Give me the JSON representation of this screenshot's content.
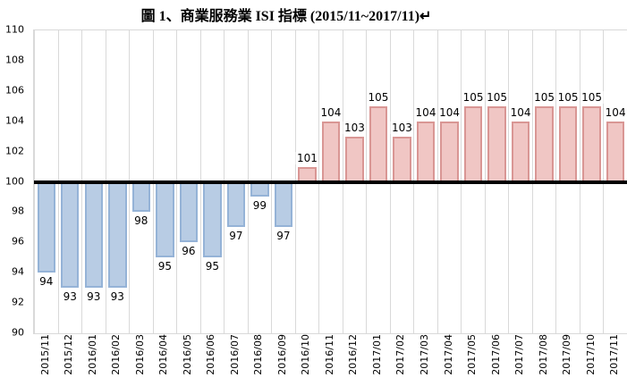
{
  "chart_data": {
    "type": "bar",
    "title": "圖 1、商業服務業 ISI 指標 (2015/11~2017/11)↵",
    "categories": [
      "2015/11",
      "2015/12",
      "2016/01",
      "2016/02",
      "2016/03",
      "2016/04",
      "2016/05",
      "2016/06",
      "2016/07",
      "2016/08",
      "2016/09",
      "2016/10",
      "2016/11",
      "2016/12",
      "2017/01",
      "2017/02",
      "2017/03",
      "2017/04",
      "2017/05",
      "2017/06",
      "2017/07",
      "2017/08",
      "2017/09",
      "2017/10",
      "2017/11"
    ],
    "values": [
      94,
      93,
      93,
      93,
      98,
      95,
      96,
      95,
      97,
      99,
      97,
      101,
      104,
      103,
      105,
      103,
      104,
      104,
      105,
      105,
      104,
      105,
      105,
      105,
      104
    ],
    "baseline": 100,
    "ylim": [
      90,
      110
    ],
    "ytick_step": 2,
    "xlabel": "",
    "ylabel": "",
    "legend": "none",
    "grid": "vertical-only",
    "data_labels": "outside-end",
    "colors": {
      "below_baseline_fill": "#B8CCE4",
      "below_baseline_border": "#95B3D7",
      "above_baseline_fill": "#F0C6C4",
      "above_baseline_border": "#D99694",
      "baseline": "#000000",
      "gridline": "#D9D9D9",
      "text": "#000000"
    }
  }
}
